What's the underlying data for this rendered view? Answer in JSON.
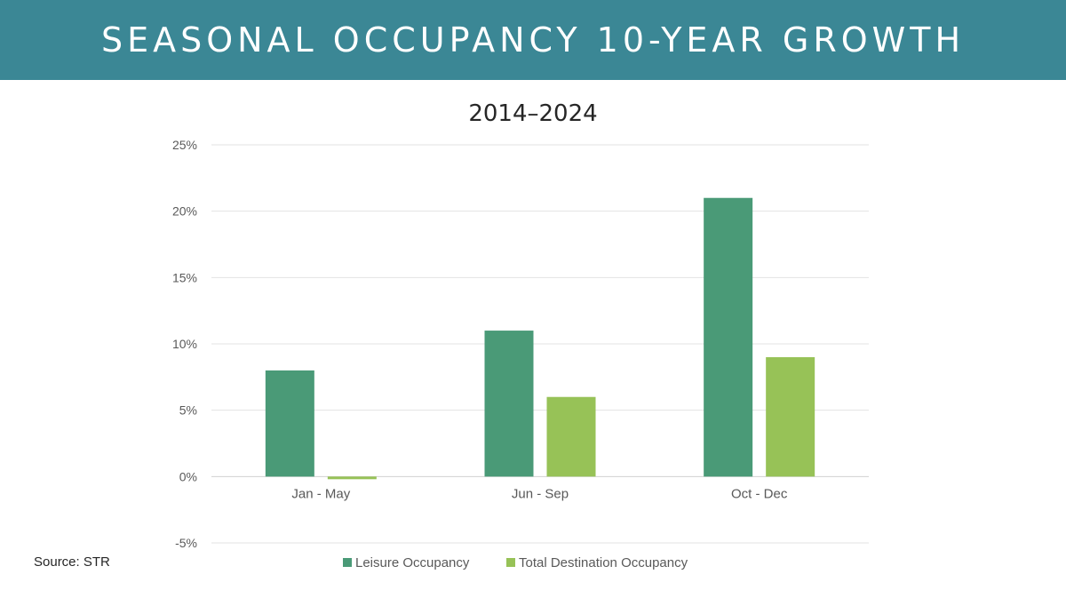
{
  "header": {
    "title": "SEASONAL OCCUPANCY 10-YEAR GROWTH",
    "background_color": "#3b8795"
  },
  "footer": {
    "source": "Source: STR"
  },
  "chart_data": {
    "type": "bar",
    "title": "2014–2024",
    "xlabel": "",
    "ylabel": "",
    "categories": [
      "Jan - May",
      "Jun - Sep",
      "Oct - Dec"
    ],
    "series": [
      {
        "name": "Leisure Occupancy",
        "color": "#4a9a77",
        "values": [
          8,
          11,
          21
        ]
      },
      {
        "name": "Total Destination Occupancy",
        "color": "#97c257",
        "values": [
          -0.2,
          6,
          9
        ]
      }
    ],
    "ylim": [
      -5,
      25
    ],
    "yticks": [
      -5,
      0,
      5,
      10,
      15,
      20,
      25
    ],
    "ytick_labels": [
      "-5%",
      "0%",
      "5%",
      "10%",
      "15%",
      "20%",
      "25%"
    ],
    "grid": true,
    "legend_position": "bottom"
  }
}
